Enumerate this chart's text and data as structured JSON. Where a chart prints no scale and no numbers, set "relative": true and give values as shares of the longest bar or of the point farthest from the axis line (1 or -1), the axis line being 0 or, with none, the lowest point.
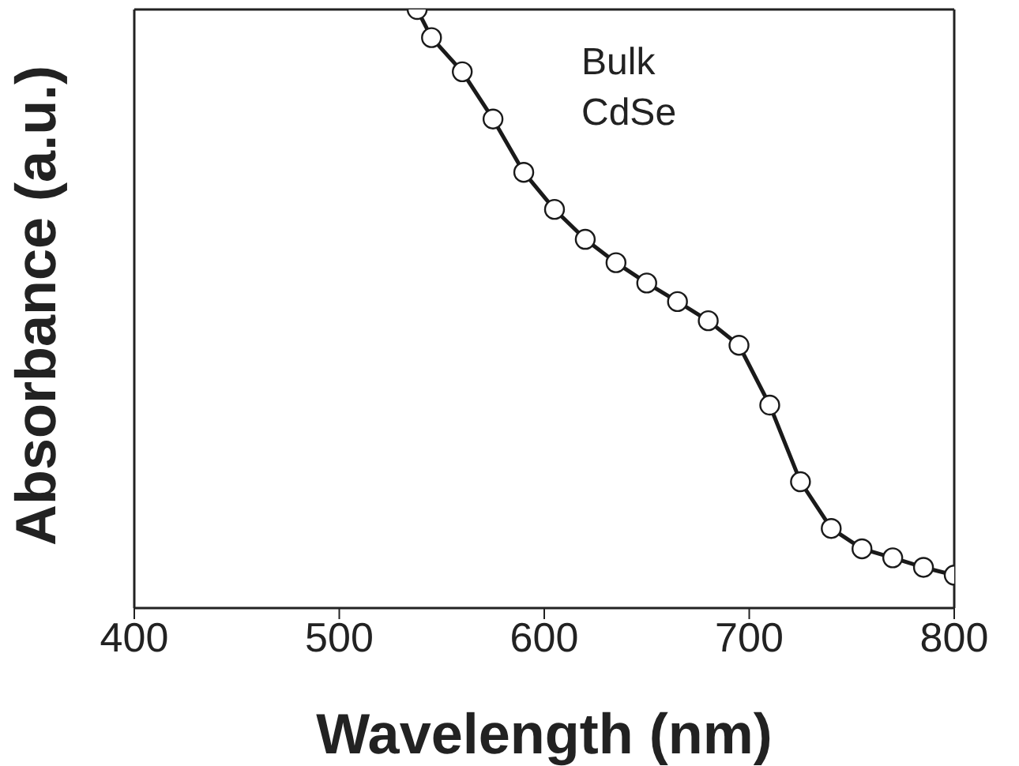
{
  "chart_data": {
    "type": "line",
    "relative": true,
    "xlabel": "Wavelength (nm)",
    "ylabel": "Absorbance (a.u.)",
    "annotations": [
      "Bulk CdSe"
    ],
    "xlim": [
      400,
      800
    ],
    "xticks": [
      400,
      500,
      600,
      700,
      800
    ],
    "tick_labels": "x",
    "marker": "circle",
    "line_style": "solid",
    "series": [
      {
        "color": "#1a1a1a",
        "x": [
          538,
          545,
          560,
          575,
          590,
          605,
          620,
          635,
          650,
          665,
          680,
          695,
          710,
          725,
          740,
          755,
          770,
          785,
          800
        ],
        "values": [
          1,
          0.953,
          0.896,
          0.817,
          0.728,
          0.666,
          0.616,
          0.577,
          0.543,
          0.512,
          0.48,
          0.439,
          0.339,
          0.211,
          0.133,
          0.099,
          0.084,
          0.068,
          0.055
        ]
      }
    ]
  }
}
